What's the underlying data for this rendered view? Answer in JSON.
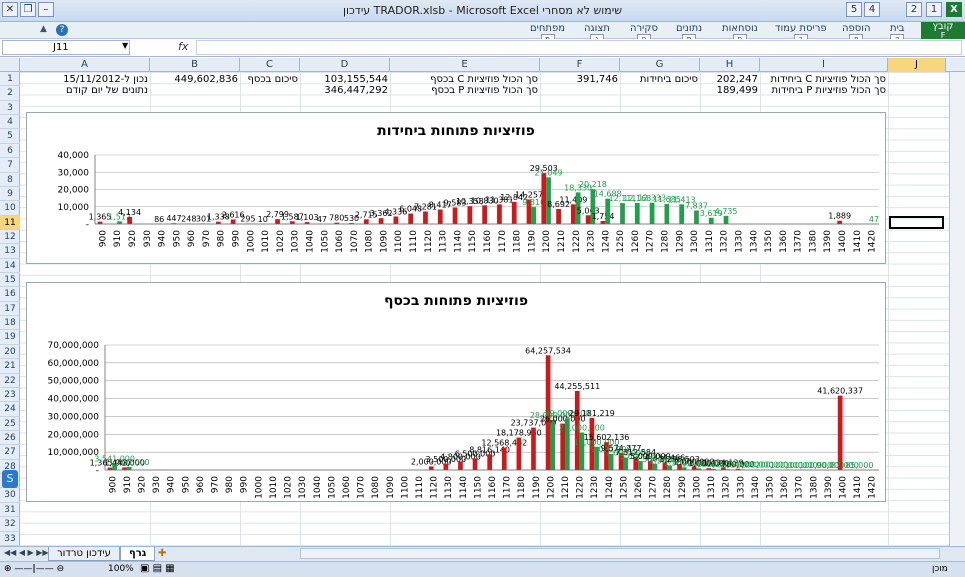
{
  "window": {
    "title": "עידכון  TRADOR.xlsb - Microsoft Excel שימוש לא מסחרי",
    "min_btn": "–",
    "restore_btn": "❐",
    "close_btn": "✕"
  },
  "quick_access": {
    "key1": "1",
    "key2": "2",
    "key3": "4",
    "key4": "5"
  },
  "ribbon": {
    "file": {
      "label": "קובץ",
      "key": "F"
    },
    "tabs": [
      {
        "label": "בית",
        "key": "ה"
      },
      {
        "label": "הוספה",
        "key": "פ"
      },
      {
        "label": "פריסת עמוד",
        "key": "ר"
      },
      {
        "label": "נוסחאות",
        "key": "ם"
      },
      {
        "label": "נתונים",
        "key": "ת"
      },
      {
        "label": "סקירה",
        "key": "ס"
      },
      {
        "label": "תצוגה",
        "key": "ג"
      },
      {
        "label": "מפתחים",
        "key": "מ"
      }
    ],
    "help_icon": "?"
  },
  "formula_bar": {
    "name_box": "J11",
    "fx": "fx",
    "value": ""
  },
  "columns": [
    "A",
    "B",
    "C",
    "D",
    "E",
    "F",
    "G",
    "H",
    "I",
    "J"
  ],
  "active_column": "J",
  "active_row": 11,
  "rows": [
    "1",
    "2",
    "3",
    "4",
    "5",
    "6",
    "7",
    "8",
    "9",
    "10",
    "11",
    "12",
    "13",
    "14",
    "15",
    "16",
    "17",
    "18",
    "19",
    "20",
    "21",
    "22",
    "23",
    "24",
    "25",
    "26",
    "27",
    "28",
    "29",
    "30",
    "31",
    "32",
    "33"
  ],
  "cells": {
    "I1": "סך הכול פוזיציות C ביחידות",
    "H1": "202,247",
    "G1": "סיכום ביחידות",
    "F1": "391,746",
    "E1": "סך הכול פוזיציות C בכסף",
    "D1": "103,155,544",
    "C1": "סיכום בכסף",
    "B1": "449,602,836",
    "A1": "נכון ל-15/11/2012",
    "I2": "סך הכול פוזיציות P ביחידות",
    "H2": "189,499",
    "E2": "סך הכול פוזיציות P בכסף",
    "D2": "346,447,292",
    "A2": "נתונים של יום קודם"
  },
  "colors": {
    "calls": "#1fa04a",
    "puts": "#d01818",
    "excel_green": "#1e7b34",
    "selection": "#f8d57e"
  },
  "chart_data": [
    {
      "type": "bar",
      "title": "פוזיציות פתוחות ביחידות",
      "categories": [
        "900",
        "910",
        "920",
        "930",
        "940",
        "950",
        "960",
        "970",
        "980",
        "990",
        "1000",
        "1010",
        "1020",
        "1030",
        "1040",
        "1050",
        "1060",
        "1070",
        "1080",
        "1090",
        "1100",
        "1110",
        "1120",
        "1130",
        "1140",
        "1150",
        "1160",
        "1170",
        "1180",
        "1190",
        "1200",
        "1210",
        "1220",
        "1230",
        "1240",
        "1250",
        "1260",
        "1270",
        "1280",
        "1290",
        "1300",
        "1310",
        "1320",
        "1330",
        "1340",
        "1350",
        "1360",
        "1370",
        "1380",
        "1390",
        "1400",
        "1410",
        "1420"
      ],
      "yticks": [
        "40,000",
        "30,000",
        "20,000",
        "10,000",
        "-"
      ],
      "ylim": [
        0,
        40000
      ],
      "series": [
        {
          "color": "#d01818",
          "values": [
            1365,
            0,
            4134,
            0,
            86,
            447,
            248,
            301,
            1338,
            2616,
            295,
            10,
            2799,
            1587,
            1103,
            47,
            780,
            530,
            2715,
            3362,
            4336,
            6048,
            7281,
            8417,
            9583,
            10358,
            10830,
            11381,
            12842,
            14257,
            29503,
            8692,
            11409,
            5063,
            1754,
            0,
            0,
            0,
            0,
            0,
            0,
            0,
            0,
            0,
            0,
            0,
            0,
            0,
            0,
            0,
            1889,
            0,
            0
          ]
        },
        {
          "color": "#1fa04a",
          "values": [
            0,
            1512,
            0,
            0,
            0,
            0,
            0,
            0,
            0,
            0,
            0,
            0,
            0,
            0,
            0,
            0,
            0,
            0,
            0,
            0,
            0,
            0,
            0,
            0,
            0,
            0,
            0,
            0,
            0,
            9810,
            27049,
            0,
            18330,
            20218,
            14688,
            12111,
            12168,
            12333,
            11685,
            11413,
            7837,
            3619,
            4735,
            0,
            0,
            0,
            0,
            0,
            0,
            0,
            0,
            0,
            47
          ]
        }
      ]
    },
    {
      "type": "bar",
      "title": "פוזיציות פתוחות בכסף",
      "categories": [
        "900",
        "910",
        "920",
        "930",
        "940",
        "950",
        "960",
        "970",
        "980",
        "990",
        "1000",
        "1010",
        "1020",
        "1030",
        "1040",
        "1050",
        "1060",
        "1070",
        "1080",
        "1090",
        "1100",
        "1110",
        "1120",
        "1130",
        "1140",
        "1150",
        "1160",
        "1170",
        "1180",
        "1190",
        "1200",
        "1210",
        "1220",
        "1230",
        "1240",
        "1250",
        "1260",
        "1270",
        "1280",
        "1290",
        "1300",
        "1310",
        "1320",
        "1330",
        "1340",
        "1350",
        "1360",
        "1370",
        "1380",
        "1390",
        "1400",
        "1410",
        "1420"
      ],
      "yticks": [
        "70,000,000",
        "60,000,000",
        "50,000,000",
        "40,000,000",
        "30,000,000",
        "20,000,000",
        "10,000,000",
        "-"
      ],
      "ylim": [
        0,
        70000000
      ],
      "series": [
        {
          "color": "#d01818",
          "values": [
            1365000,
            1442000,
            0,
            0,
            0,
            0,
            0,
            0,
            0,
            0,
            0,
            0,
            0,
            0,
            0,
            0,
            0,
            0,
            0,
            0,
            0,
            0,
            2000000,
            3500000,
            4800000,
            6500000,
            8816140,
            12568462,
            18178950,
            23737000,
            64257534,
            26000000,
            44255511,
            29181219,
            15602136,
            9574777,
            7312584,
            5000000,
            4334466,
            3296503,
            2000000,
            1000000,
            1434129,
            700000,
            0,
            0,
            0,
            0,
            0,
            0,
            41620337,
            0,
            0
          ]
        },
        {
          "color": "#1fa04a",
          "values": [
            3541000,
            1700000,
            0,
            0,
            0,
            0,
            0,
            0,
            0,
            0,
            0,
            0,
            0,
            0,
            0,
            0,
            0,
            0,
            0,
            0,
            0,
            0,
            0,
            0,
            0,
            0,
            0,
            0,
            0,
            0,
            28000000,
            29000000,
            21000000,
            13000000,
            9000000,
            7000000,
            5000000,
            3500000,
            2500000,
            1500000,
            900000,
            600000,
            400000,
            300000,
            200000,
            200000,
            100000,
            100000,
            100000,
            90000,
            87000,
            85000,
            0
          ]
        }
      ]
    }
  ],
  "sheet_tabs": [
    {
      "label": "גרף",
      "active": true
    },
    {
      "label": "עידכון טרדור",
      "active": false
    }
  ],
  "status": {
    "ready": "מוכן",
    "zoom": "100%"
  }
}
